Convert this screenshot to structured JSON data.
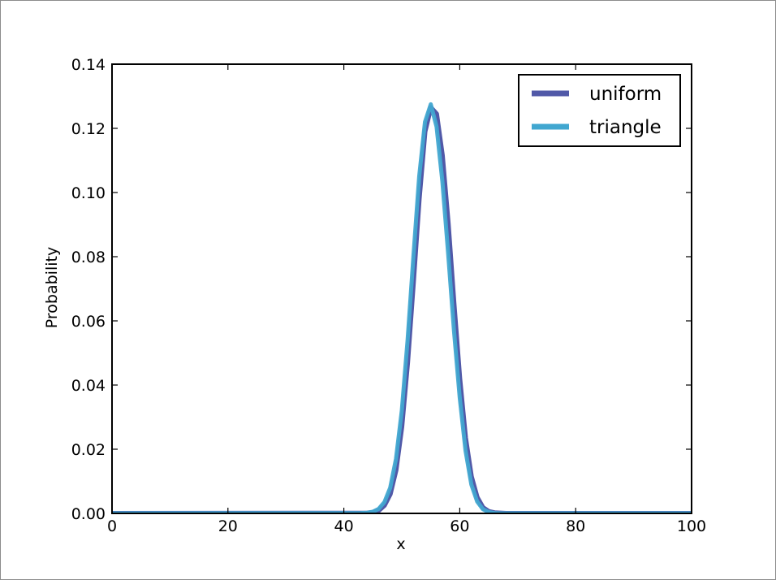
{
  "chart_data": {
    "type": "line",
    "title": "",
    "xlabel": "x",
    "ylabel": "Probability",
    "xlim": [
      0,
      100
    ],
    "ylim": [
      0,
      0.14
    ],
    "xticks": [
      0,
      20,
      40,
      60,
      80,
      100
    ],
    "xtick_labels": [
      "0",
      "20",
      "40",
      "60",
      "80",
      "100"
    ],
    "yticks": [
      0,
      0.02,
      0.04,
      0.06,
      0.08,
      0.1,
      0.12,
      0.14
    ],
    "ytick_labels": [
      "0.00",
      "0.02",
      "0.04",
      "0.06",
      "0.08",
      "0.10",
      "0.12",
      "0.14"
    ],
    "grid": false,
    "legend_position": "top-right",
    "series": [
      {
        "name": "uniform",
        "color": "#5159a8",
        "x": [
          0,
          44,
          45,
          46,
          47,
          48,
          49,
          50,
          51,
          52,
          53,
          54,
          55,
          56,
          57,
          58,
          59,
          60,
          61,
          62,
          63,
          64,
          65,
          66,
          67,
          68,
          100
        ],
        "y": [
          0,
          0.0001,
          0.0003,
          0.0009,
          0.0025,
          0.006,
          0.0135,
          0.027,
          0.047,
          0.072,
          0.098,
          0.119,
          0.1265,
          0.1245,
          0.1115,
          0.0905,
          0.0655,
          0.042,
          0.0235,
          0.0115,
          0.005,
          0.0018,
          0.0006,
          0.0002,
          0.0001,
          0,
          0
        ]
      },
      {
        "name": "triangle",
        "color": "#41a7d0",
        "x": [
          0,
          43,
          44,
          45,
          46,
          47,
          48,
          49,
          50,
          51,
          52,
          53,
          54,
          55,
          56,
          57,
          58,
          59,
          60,
          61,
          62,
          63,
          64,
          65,
          66,
          67,
          100
        ],
        "y": [
          0,
          0.0001,
          0.0002,
          0.0005,
          0.0014,
          0.0035,
          0.008,
          0.017,
          0.032,
          0.054,
          0.08,
          0.105,
          0.122,
          0.1275,
          0.1205,
          0.1035,
          0.081,
          0.057,
          0.036,
          0.0195,
          0.009,
          0.0037,
          0.0013,
          0.0004,
          0.0001,
          0,
          0
        ]
      }
    ]
  }
}
